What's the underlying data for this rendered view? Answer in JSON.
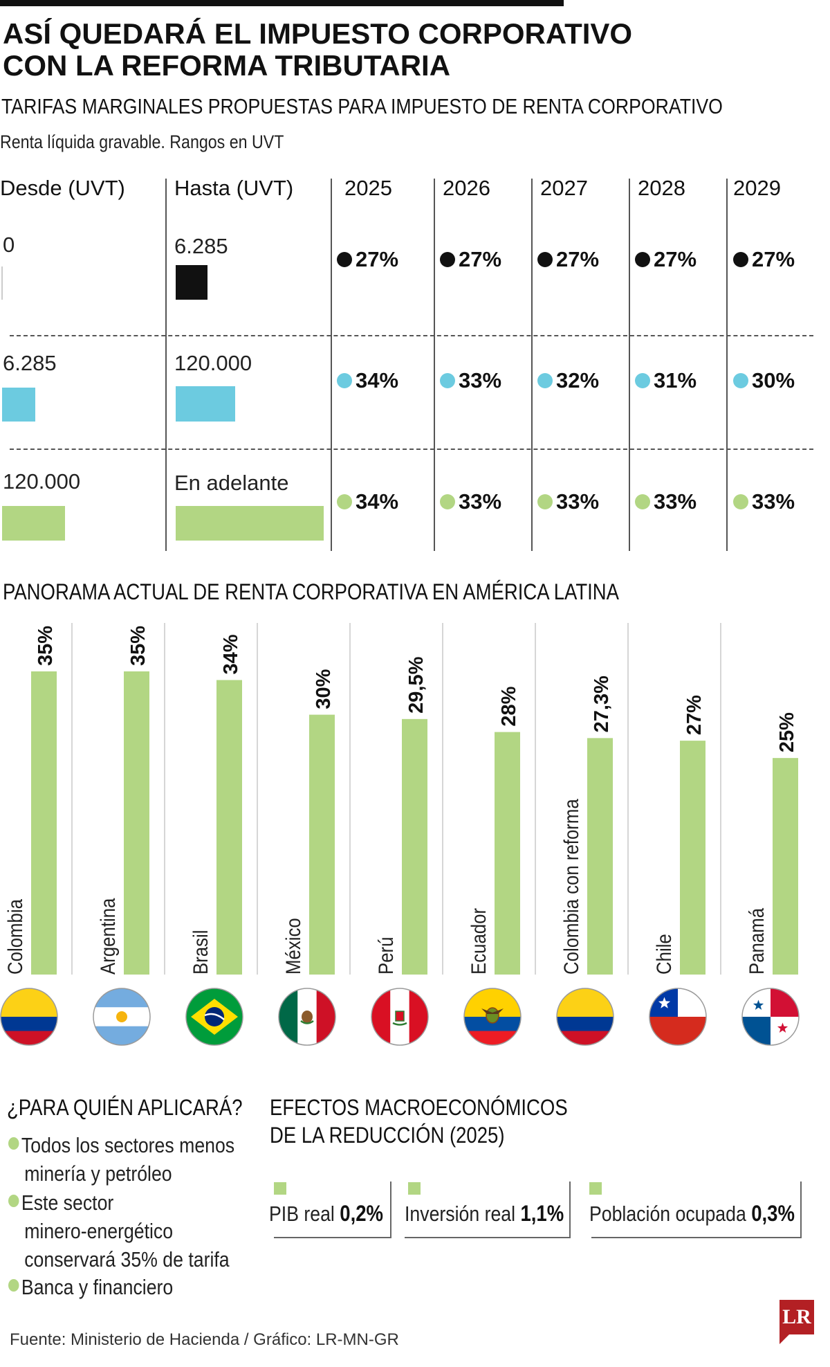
{
  "header": {
    "title_line1": "ASÍ QUEDARÁ EL IMPUESTO CORPORATIVO",
    "title_line2": "CON LA REFORMA TRIBUTARIA",
    "subtitle": "TARIFAS MARGINALES PROPUESTAS PARA  IMPUESTO DE RENTA CORPORATIVO",
    "note": "Renta líquida gravable.  Rangos en UVT"
  },
  "table": {
    "columns": [
      "Desde (UVT)",
      "Hasta (UVT)",
      "2025",
      "2026",
      "2027",
      "2028",
      "2029"
    ],
    "rows": [
      {
        "desde": "0",
        "hasta": "6.285",
        "rates": [
          "27%",
          "27%",
          "27%",
          "27%",
          "27%"
        ],
        "color": "#111111"
      },
      {
        "desde": "6.285",
        "hasta": "120.000",
        "rates": [
          "34%",
          "33%",
          "32%",
          "31%",
          "30%"
        ],
        "color": "#6ccbe0"
      },
      {
        "desde": "120.000",
        "hasta": "En adelante",
        "rates": [
          "34%",
          "33%",
          "33%",
          "33%",
          "33%"
        ],
        "color": "#b2d683"
      }
    ]
  },
  "section2": {
    "title": "PANORAMA ACTUAL DE RENTA CORPORATIVA EN AMÉRICA LATINA"
  },
  "chart_data": {
    "type": "bar",
    "title": "PANORAMA ACTUAL DE RENTA CORPORATIVA EN AMÉRICA LATINA",
    "categories": [
      "Colombia",
      "Argentina",
      "Brasil",
      "México",
      "Perú",
      "Ecuador",
      "Colombia con reforma",
      "Chile",
      "Panamá"
    ],
    "values": [
      35,
      35,
      34,
      30,
      29.5,
      28,
      27.3,
      27,
      25
    ],
    "value_labels": [
      "35%",
      "35%",
      "34%",
      "30%",
      "29,5%",
      "28%",
      "27,3%",
      "27%",
      "25%"
    ],
    "flags": [
      "colombia-flag",
      "argentina-flag",
      "brazil-flag",
      "mexico-flag",
      "peru-flag",
      "ecuador-flag",
      "colombia-flag",
      "chile-flag",
      "panama-flag"
    ],
    "bar_color": "#b2d683",
    "ylim": [
      0,
      35
    ],
    "grid": false,
    "legend": "none"
  },
  "applies": {
    "title": "¿PARA QUIÉN APLICARÁ?",
    "items": [
      [
        "Todos los sectores menos",
        "minería y petróleo"
      ],
      [
        "Este sector",
        "minero-energético",
        "conservará 35% de tarifa"
      ],
      [
        "Banca y financiero"
      ]
    ]
  },
  "effects": {
    "title_line1": "EFECTOS MACROECONÓMICOS",
    "title_line2": "DE LA REDUCCIÓN (2025)",
    "items": [
      {
        "label": "PIB real",
        "value": "0,2%"
      },
      {
        "label": "Inversión real",
        "value": "1,1%"
      },
      {
        "label": "Población ocupada",
        "value": "0,3%"
      }
    ]
  },
  "footer": {
    "source": "Fuente: Ministerio de Hacienda / Gráfico: LR-MN-GR",
    "logo": "LR"
  },
  "colors": {
    "accent_green": "#b2d683",
    "accent_blue": "#6ccbe0",
    "black": "#111111",
    "logo_red": "#b32024"
  }
}
